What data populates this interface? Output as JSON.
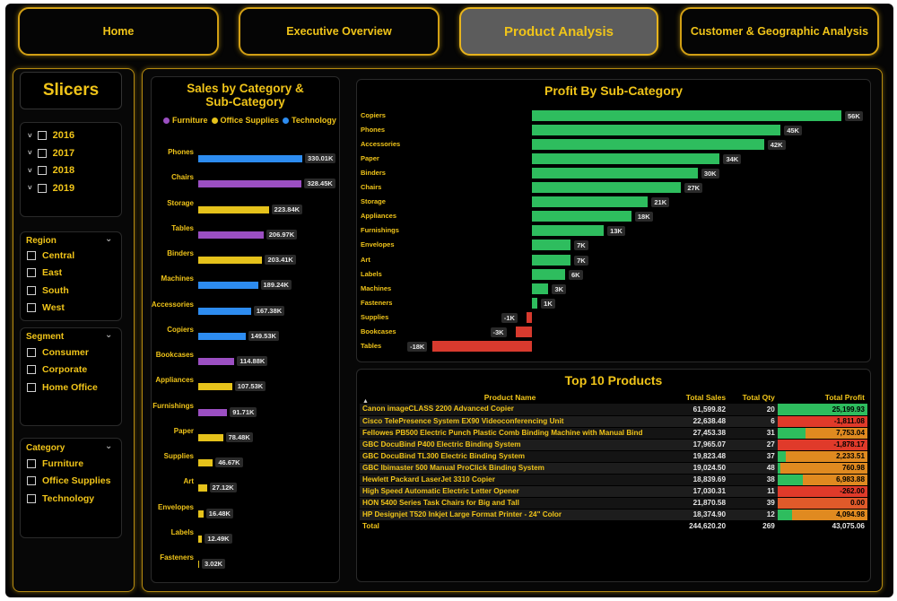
{
  "nav": {
    "tabs": [
      {
        "label": "Home",
        "active": false
      },
      {
        "label": "Executive Overview",
        "active": false
      },
      {
        "label": "Product Analysis",
        "active": true
      },
      {
        "label": "Customer & Geographic Analysis",
        "active": false
      }
    ]
  },
  "slicers": {
    "title": "Slicers",
    "years": [
      "2016",
      "2017",
      "2018",
      "2019"
    ],
    "region": {
      "label": "Region",
      "options": [
        "Central",
        "East",
        "South",
        "West"
      ]
    },
    "segment": {
      "label": "Segment",
      "options": [
        "Consumer",
        "Corporate",
        "Home Office"
      ]
    },
    "category": {
      "label": "Category",
      "options": [
        "Furniture",
        "Office Supplies",
        "Technology"
      ]
    }
  },
  "sales_chart": {
    "title_line1": "Sales by Category &",
    "title_line2": "Sub-Category",
    "legend": [
      {
        "name": "Furniture",
        "color": "#9b4fc2"
      },
      {
        "name": "Office Supplies",
        "color": "#e5c21b"
      },
      {
        "name": "Technology",
        "color": "#2d8cf0"
      }
    ]
  },
  "profit_chart": {
    "title": "Profit By Sub-Category"
  },
  "table": {
    "title": "Top 10 Products",
    "columns": [
      "Product Name",
      "Total Sales",
      "Total Qty",
      "Total Profit"
    ],
    "rows": [
      {
        "name": "Canon imageCLASS 2200 Advanced Copier",
        "sales": "61,599.82",
        "qty": "20",
        "profit": "25,199.93",
        "color": "#1fbf4a"
      },
      {
        "name": "Cisco TelePresence System EX90 Videoconferencing Unit",
        "sales": "22,638.48",
        "qty": "6",
        "profit": "-1,811.08",
        "color": "#e03a2a"
      },
      {
        "name": "Fellowes PB500 Electric Punch Plastic Comb Binding Machine with Manual Bind",
        "sales": "27,453.38",
        "qty": "31",
        "profit": "7,753.04",
        "color": "#e08a20"
      },
      {
        "name": "GBC DocuBind P400 Electric Binding System",
        "sales": "17,965.07",
        "qty": "27",
        "profit": "-1,878.17",
        "color": "#e03a2a"
      },
      {
        "name": "GBC DocuBind TL300 Electric Binding System",
        "sales": "19,823.48",
        "qty": "37",
        "profit": "2,233.51",
        "color": "#e08a20"
      },
      {
        "name": "GBC Ibimaster 500 Manual ProClick Binding System",
        "sales": "19,024.50",
        "qty": "48",
        "profit": "760.98",
        "color": "#e08a20"
      },
      {
        "name": "Hewlett Packard LaserJet 3310 Copier",
        "sales": "18,839.69",
        "qty": "38",
        "profit": "6,983.88",
        "color": "#e08a20"
      },
      {
        "name": "High Speed Automatic Electric Letter Opener",
        "sales": "17,030.31",
        "qty": "11",
        "profit": "-262.00",
        "color": "#e03a2a"
      },
      {
        "name": "HON 5400 Series Task Chairs for Big and Tall",
        "sales": "21,870.58",
        "qty": "39",
        "profit": "0.00",
        "color": "#e05a2a"
      },
      {
        "name": "HP Designjet T520 Inkjet Large Format Printer - 24\" Color",
        "sales": "18,374.90",
        "qty": "12",
        "profit": "4,094.98",
        "color": "#e08a20"
      }
    ],
    "total": {
      "label": "Total",
      "sales": "244,620.20",
      "qty": "269",
      "profit": "43,075.06"
    }
  },
  "chart_data": [
    {
      "type": "bar",
      "title": "Sales by Category & Sub-Category",
      "orientation": "horizontal",
      "legend_position": "top",
      "categories": [
        "Phones",
        "Chairs",
        "Storage",
        "Tables",
        "Binders",
        "Machines",
        "Accessories",
        "Copiers",
        "Bookcases",
        "Appliances",
        "Furnishings",
        "Paper",
        "Supplies",
        "Art",
        "Envelopes",
        "Labels",
        "Fasteners"
      ],
      "series_of": [
        "Technology",
        "Furniture",
        "Office Supplies",
        "Furniture",
        "Office Supplies",
        "Technology",
        "Technology",
        "Technology",
        "Furniture",
        "Office Supplies",
        "Furniture",
        "Office Supplies",
        "Office Supplies",
        "Office Supplies",
        "Office Supplies",
        "Office Supplies",
        "Office Supplies"
      ],
      "values": [
        330.01,
        328.45,
        223.84,
        206.97,
        203.41,
        189.24,
        167.38,
        149.53,
        114.88,
        107.53,
        91.71,
        78.48,
        46.67,
        27.12,
        16.48,
        12.49,
        3.02
      ],
      "labels": [
        "330.01K",
        "328.45K",
        "223.84K",
        "206.97K",
        "203.41K",
        "189.24K",
        "167.38K",
        "149.53K",
        "114.88K",
        "107.53K",
        "91.71K",
        "78.48K",
        "46.67K",
        "27.12K",
        "16.48K",
        "12.49K",
        "3.02K"
      ],
      "unit": "K"
    },
    {
      "type": "bar",
      "title": "Profit By Sub-Category",
      "orientation": "horizontal",
      "categories": [
        "Copiers",
        "Phones",
        "Accessories",
        "Paper",
        "Binders",
        "Chairs",
        "Storage",
        "Appliances",
        "Furnishings",
        "Envelopes",
        "Art",
        "Labels",
        "Machines",
        "Fasteners",
        "Supplies",
        "Bookcases",
        "Tables"
      ],
      "values": [
        56,
        45,
        42,
        34,
        30,
        27,
        21,
        18,
        13,
        7,
        7,
        6,
        3,
        1,
        -1,
        -3,
        -18
      ],
      "labels": [
        "56K",
        "45K",
        "42K",
        "34K",
        "30K",
        "27K",
        "21K",
        "18K",
        "13K",
        "7K",
        "7K",
        "6K",
        "3K",
        "1K",
        "-1K",
        "-3K",
        "-18K"
      ],
      "positive_color": "#2ebd5e",
      "negative_color": "#d83a2e",
      "unit": "K"
    }
  ]
}
